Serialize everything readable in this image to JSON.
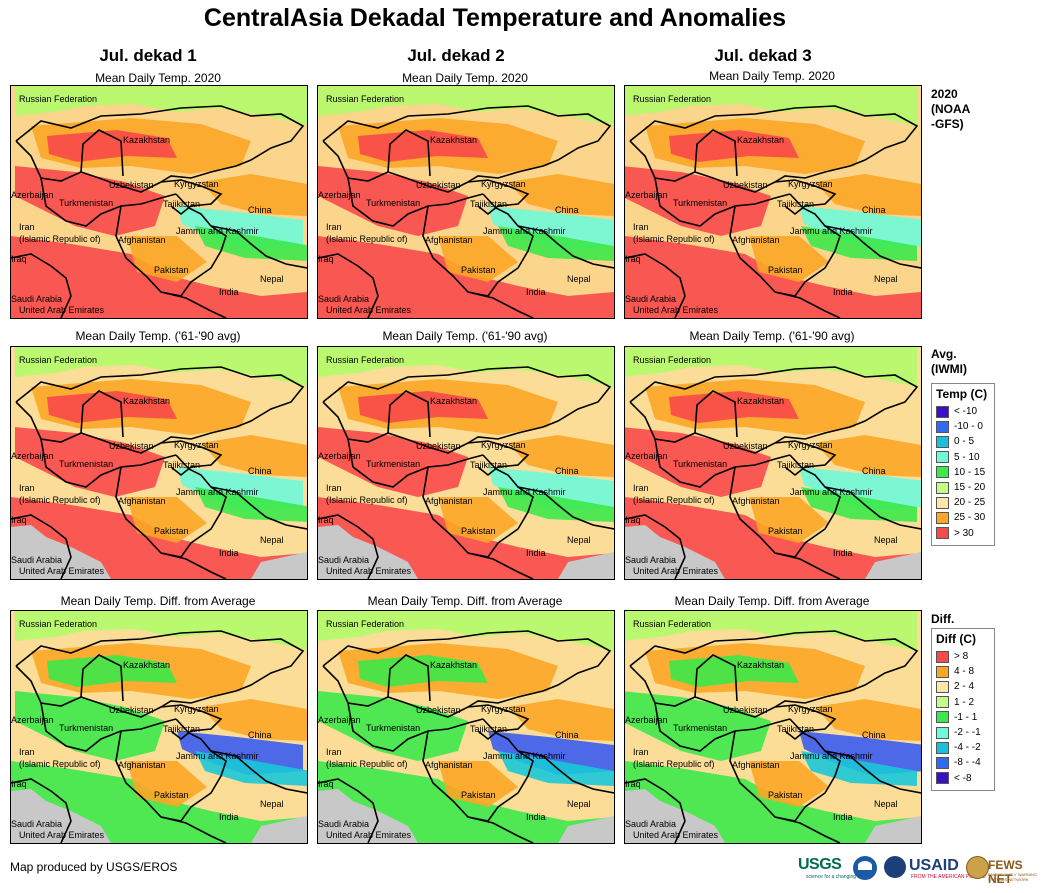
{
  "title": "CentralAsia Dekadal Temperature and Anomalies",
  "columns": [
    "Jul. dekad 1",
    "Jul. dekad 2",
    "Jul. dekad 3"
  ],
  "rows": [
    {
      "key": "current",
      "subtitle": "Mean Daily Temp. 2020",
      "side_label": [
        "2020",
        "(NOAA",
        "-GFS)"
      ],
      "palette": {
        "base": "#fcd58d",
        "a": "#fba626",
        "b": "#f8494b",
        "c": "#b3fb6b",
        "d": "#3ce84a",
        "e": "#6ffad9"
      }
    },
    {
      "key": "average",
      "subtitle": "Mean Daily Temp. ('61-'90 avg)",
      "side_label": [
        "Avg.",
        "(IWMI)"
      ],
      "palette": {
        "base": "#fbdd98",
        "a": "#fba626",
        "b": "#f8494b",
        "c": "#b3fb6b",
        "d": "#3ce84a",
        "e": "#6ffad9"
      }
    },
    {
      "key": "difference",
      "subtitle": "Mean Daily Temp. Diff. from Average",
      "side_label": [
        "Diff."
      ],
      "palette": {
        "base": "#fbdd98",
        "a": "#fba626",
        "b": "#3ce84a",
        "c": "#b3fb6b",
        "d": "#1ac8d8",
        "e": "#3a5cf0"
      }
    }
  ],
  "map_labels": [
    "Russian Federation",
    "Kazakhstan",
    "Uzbekistan",
    "Kyrgyzstan",
    "Azerbaijan",
    "Turkmenistan",
    "Tajikistan",
    "China",
    "Iran",
    "(Islamic Republic of)",
    "Afghanistan",
    "Jammu and Kashmir",
    "Iraq",
    "Pakistan",
    "Nepal",
    "India",
    "Saudi Arabia",
    "United Arab Emirates"
  ],
  "legend_temp": {
    "title": "Temp (C)",
    "items": [
      {
        "label": "< -10",
        "color": "#3b10c9"
      },
      {
        "label": "-10 - 0",
        "color": "#2f6af0"
      },
      {
        "label": "0 - 5",
        "color": "#18c0dc"
      },
      {
        "label": "5 - 10",
        "color": "#6ffad9"
      },
      {
        "label": "10 - 15",
        "color": "#3ce84a"
      },
      {
        "label": "15 - 20",
        "color": "#c6fb87"
      },
      {
        "label": "20 - 25",
        "color": "#fde6a8"
      },
      {
        "label": "25 - 30",
        "color": "#fba626"
      },
      {
        "label": "> 30",
        "color": "#f8494b"
      }
    ]
  },
  "legend_diff": {
    "title": "Diff (C)",
    "items": [
      {
        "label": "> 8",
        "color": "#f8494b"
      },
      {
        "label": "4 - 8",
        "color": "#fba626"
      },
      {
        "label": "2 - 4",
        "color": "#fde6a8"
      },
      {
        "label": "1 - 2",
        "color": "#c6fb87"
      },
      {
        "label": "-1 - 1",
        "color": "#3ce84a"
      },
      {
        "label": "-2 - -1",
        "color": "#6ffad9"
      },
      {
        "label": "-4 - -2",
        "color": "#18c0dc"
      },
      {
        "label": "-8 - -4",
        "color": "#2f6af0"
      },
      {
        "label": "< -8",
        "color": "#3b10c9"
      }
    ]
  },
  "colors": {
    "gray": "#c8c8c8",
    "border": "#000000"
  },
  "footer": "Map produced by USGS/EROS",
  "logos": {
    "usgs": "USGS",
    "usgs_tag": "science for a changing world",
    "usaid": "USAID",
    "usaid_tag": "FROM THE AMERICAN PEOPLE",
    "fews": "FEWS NET",
    "fews_tag": "FAMINE EARLY WARNING SYSTEMS NETWORK"
  }
}
